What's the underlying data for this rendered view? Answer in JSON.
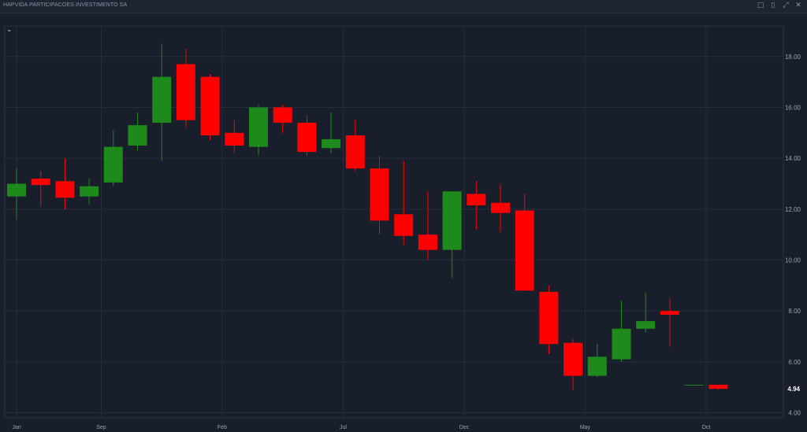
{
  "window": {
    "title": "HAPVIDA PARTICIPACOES INVESTIMENTO SA",
    "icons": [
      "popout-icon",
      "save-icon",
      "expand-icon",
      "close-icon"
    ]
  },
  "toolbar": {
    "collapse_icon": "chevron-down-icon"
  },
  "chart_data": {
    "type": "candlestick",
    "title": "",
    "xlabel": "",
    "ylabel": "",
    "ylim": [
      3.8,
      19.2
    ],
    "y_ticks": [
      "4.00",
      "6.00",
      "8.00",
      "10.00",
      "12.00",
      "14.00",
      "16.00",
      "18.00"
    ],
    "x_ticks": [
      "Jan",
      "Sep",
      "Feb",
      "Jul",
      "Dec",
      "May",
      "Oct"
    ],
    "last_price_label": "4.94",
    "grid": true,
    "colors": {
      "up": "#1f8a1c",
      "down": "#ff0000",
      "background": "#191e2b",
      "grid": "#262d3d",
      "axis_text": "#9aa0ad",
      "last_price": "#ffffff"
    },
    "candles": [
      {
        "open": 12.5,
        "high": 13.6,
        "low": 11.6,
        "close": 13.0
      },
      {
        "open": 13.2,
        "high": 13.5,
        "low": 12.1,
        "close": 12.95
      },
      {
        "open": 13.1,
        "high": 14.0,
        "low": 12.0,
        "close": 12.45
      },
      {
        "open": 12.5,
        "high": 13.2,
        "low": 12.2,
        "close": 12.9
      },
      {
        "open": 13.05,
        "high": 15.1,
        "low": 12.9,
        "close": 14.45
      },
      {
        "open": 14.5,
        "high": 15.8,
        "low": 14.3,
        "close": 15.3
      },
      {
        "open": 15.4,
        "high": 18.5,
        "low": 13.9,
        "close": 17.2
      },
      {
        "open": 17.7,
        "high": 18.3,
        "low": 15.2,
        "close": 15.5
      },
      {
        "open": 17.2,
        "high": 17.3,
        "low": 14.7,
        "close": 14.9
      },
      {
        "open": 15.0,
        "high": 15.5,
        "low": 14.2,
        "close": 14.5
      },
      {
        "open": 14.45,
        "high": 16.1,
        "low": 14.1,
        "close": 16.0
      },
      {
        "open": 16.0,
        "high": 16.1,
        "low": 15.0,
        "close": 15.4
      },
      {
        "open": 15.4,
        "high": 15.7,
        "low": 14.1,
        "close": 14.25
      },
      {
        "open": 14.4,
        "high": 15.8,
        "low": 14.2,
        "close": 14.75
      },
      {
        "open": 14.9,
        "high": 15.5,
        "low": 13.5,
        "close": 13.6
      },
      {
        "open": 13.6,
        "high": 14.1,
        "low": 11.0,
        "close": 11.55
      },
      {
        "open": 11.8,
        "high": 13.9,
        "low": 10.6,
        "close": 10.95
      },
      {
        "open": 11.0,
        "high": 12.7,
        "low": 10.0,
        "close": 10.4
      },
      {
        "open": 10.4,
        "high": 12.7,
        "low": 9.3,
        "close": 12.7
      },
      {
        "open": 12.6,
        "high": 13.1,
        "low": 11.2,
        "close": 12.15
      },
      {
        "open": 12.25,
        "high": 13.0,
        "low": 11.1,
        "close": 11.85
      },
      {
        "open": 11.95,
        "high": 12.6,
        "low": 8.8,
        "close": 8.8
      },
      {
        "open": 8.75,
        "high": 9.0,
        "low": 6.3,
        "close": 6.7
      },
      {
        "open": 6.75,
        "high": 6.9,
        "low": 4.9,
        "close": 5.45
      },
      {
        "open": 5.45,
        "high": 6.7,
        "low": 5.4,
        "close": 6.2
      },
      {
        "open": 6.1,
        "high": 8.4,
        "low": 6.0,
        "close": 7.3
      },
      {
        "open": 7.3,
        "high": 8.7,
        "low": 7.15,
        "close": 7.6
      },
      {
        "open": 8.0,
        "high": 8.5,
        "low": 6.6,
        "close": 7.85
      },
      {
        "open": 5.1,
        "high": 5.1,
        "low": 5.1,
        "close": 5.1
      },
      {
        "open": 5.1,
        "high": 5.1,
        "low": 4.9,
        "close": 4.94
      }
    ],
    "x_tick_candles": [
      0,
      3.5,
      8.5,
      13.5,
      18.5,
      23.5,
      28.5
    ]
  }
}
